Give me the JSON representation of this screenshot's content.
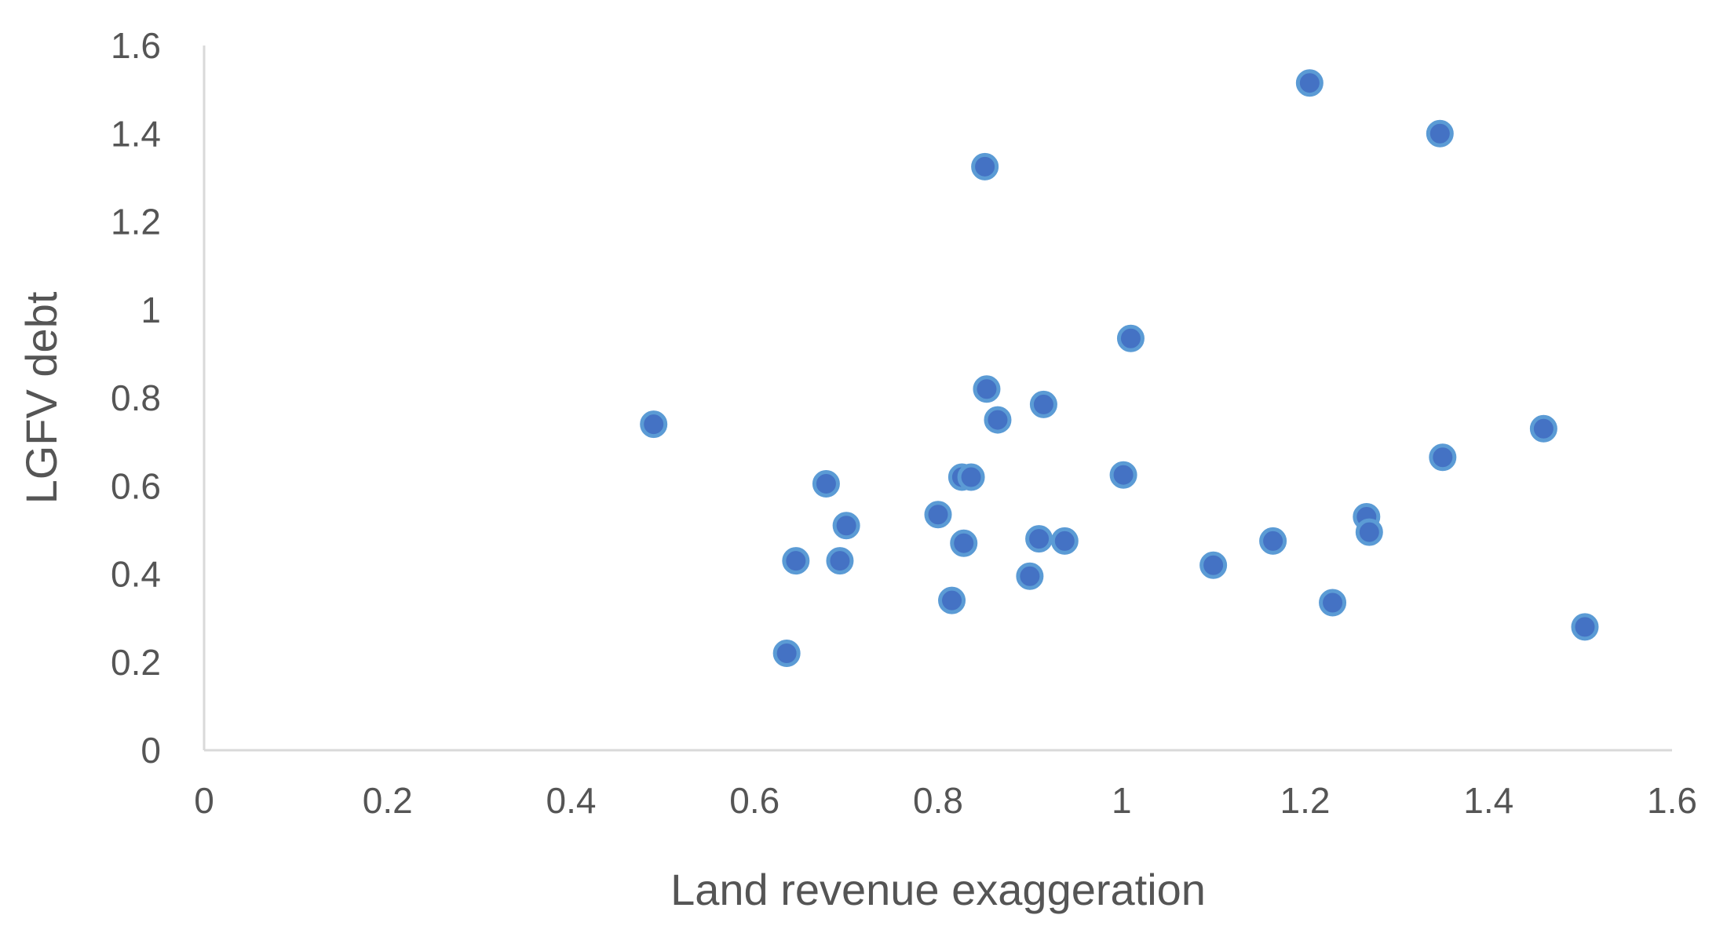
{
  "chart_data": {
    "type": "scatter",
    "title": "",
    "xlabel": "Land revenue exaggeration",
    "ylabel": "LGFV debt",
    "xlim": [
      0,
      1.6
    ],
    "ylim": [
      0,
      1.6
    ],
    "xticks": [
      "0",
      "0.2",
      "0.4",
      "0.6",
      "0.8",
      "1",
      "1.2",
      "1.4",
      "1.6"
    ],
    "yticks": [
      "0",
      "0.2",
      "0.4",
      "0.6",
      "0.8",
      "1",
      "1.2",
      "1.4",
      "1.6"
    ],
    "grid": false,
    "legend": "none",
    "marker_color": "#4472c4",
    "marker_edge_color": "#5b9bd5",
    "axis_color": "#d9d9d9",
    "points": [
      {
        "x": 0.49,
        "y": 0.74
      },
      {
        "x": 0.635,
        "y": 0.22
      },
      {
        "x": 0.645,
        "y": 0.43
      },
      {
        "x": 0.678,
        "y": 0.605
      },
      {
        "x": 0.693,
        "y": 0.43
      },
      {
        "x": 0.7,
        "y": 0.51
      },
      {
        "x": 0.8,
        "y": 0.535
      },
      {
        "x": 0.815,
        "y": 0.34
      },
      {
        "x": 0.826,
        "y": 0.62
      },
      {
        "x": 0.836,
        "y": 0.62
      },
      {
        "x": 0.828,
        "y": 0.47
      },
      {
        "x": 0.851,
        "y": 1.325
      },
      {
        "x": 0.853,
        "y": 0.82
      },
      {
        "x": 0.865,
        "y": 0.75
      },
      {
        "x": 0.9,
        "y": 0.395
      },
      {
        "x": 0.91,
        "y": 0.48
      },
      {
        "x": 0.915,
        "y": 0.785
      },
      {
        "x": 0.938,
        "y": 0.475
      },
      {
        "x": 1.002,
        "y": 0.625
      },
      {
        "x": 1.01,
        "y": 0.935
      },
      {
        "x": 1.1,
        "y": 0.42
      },
      {
        "x": 1.165,
        "y": 0.475
      },
      {
        "x": 1.205,
        "y": 1.515
      },
      {
        "x": 1.23,
        "y": 0.335
      },
      {
        "x": 1.267,
        "y": 0.53
      },
      {
        "x": 1.27,
        "y": 0.495
      },
      {
        "x": 1.347,
        "y": 1.4
      },
      {
        "x": 1.35,
        "y": 0.665
      },
      {
        "x": 1.46,
        "y": 0.73
      },
      {
        "x": 1.505,
        "y": 0.28
      }
    ]
  }
}
